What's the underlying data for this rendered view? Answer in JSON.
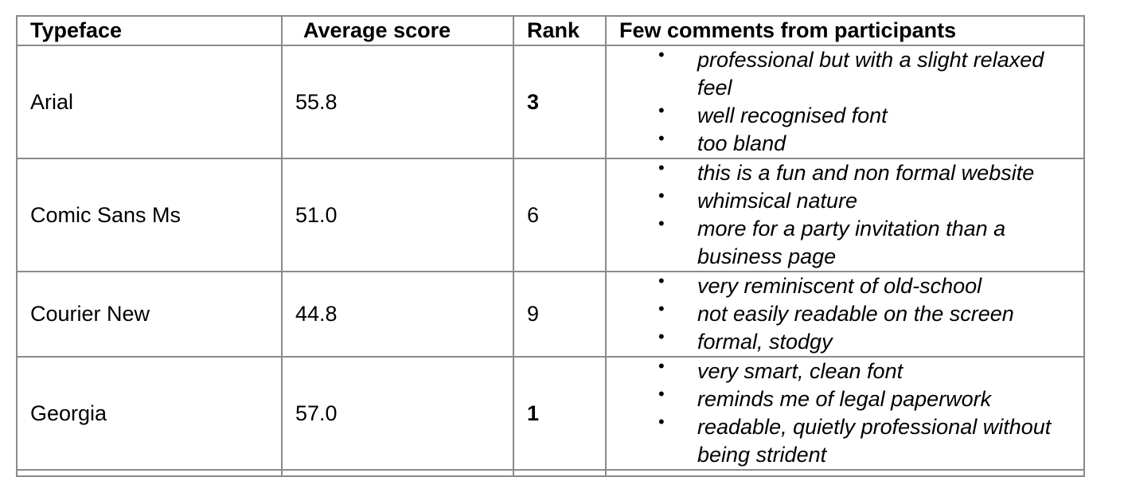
{
  "table": {
    "headers": {
      "typeface": "Typeface",
      "average_score": "Average score",
      "rank": "Rank",
      "comments": "Few comments from participants"
    },
    "rows": [
      {
        "typeface": "Arial",
        "average_score": "55.8",
        "rank": "3",
        "rank_bold": true,
        "comments": [
          "professional but with a slight relaxed feel",
          "well recognised font",
          "too bland"
        ]
      },
      {
        "typeface": "Comic Sans Ms",
        "average_score": "51.0",
        "rank": "6",
        "rank_bold": false,
        "comments": [
          "this is a fun and non formal website",
          "whimsical nature",
          "more for a party invitation than a business page"
        ]
      },
      {
        "typeface": "Courier New",
        "average_score": "44.8",
        "rank": "9",
        "rank_bold": false,
        "comments": [
          "very reminiscent of old-school",
          "not easily readable on the screen",
          "formal, stodgy"
        ]
      },
      {
        "typeface": "Georgia",
        "average_score": "57.0",
        "rank": "1",
        "rank_bold": true,
        "comments": [
          "very smart, clean font",
          "reminds me of legal paperwork",
          "readable, quietly professional without being strident"
        ]
      }
    ]
  }
}
